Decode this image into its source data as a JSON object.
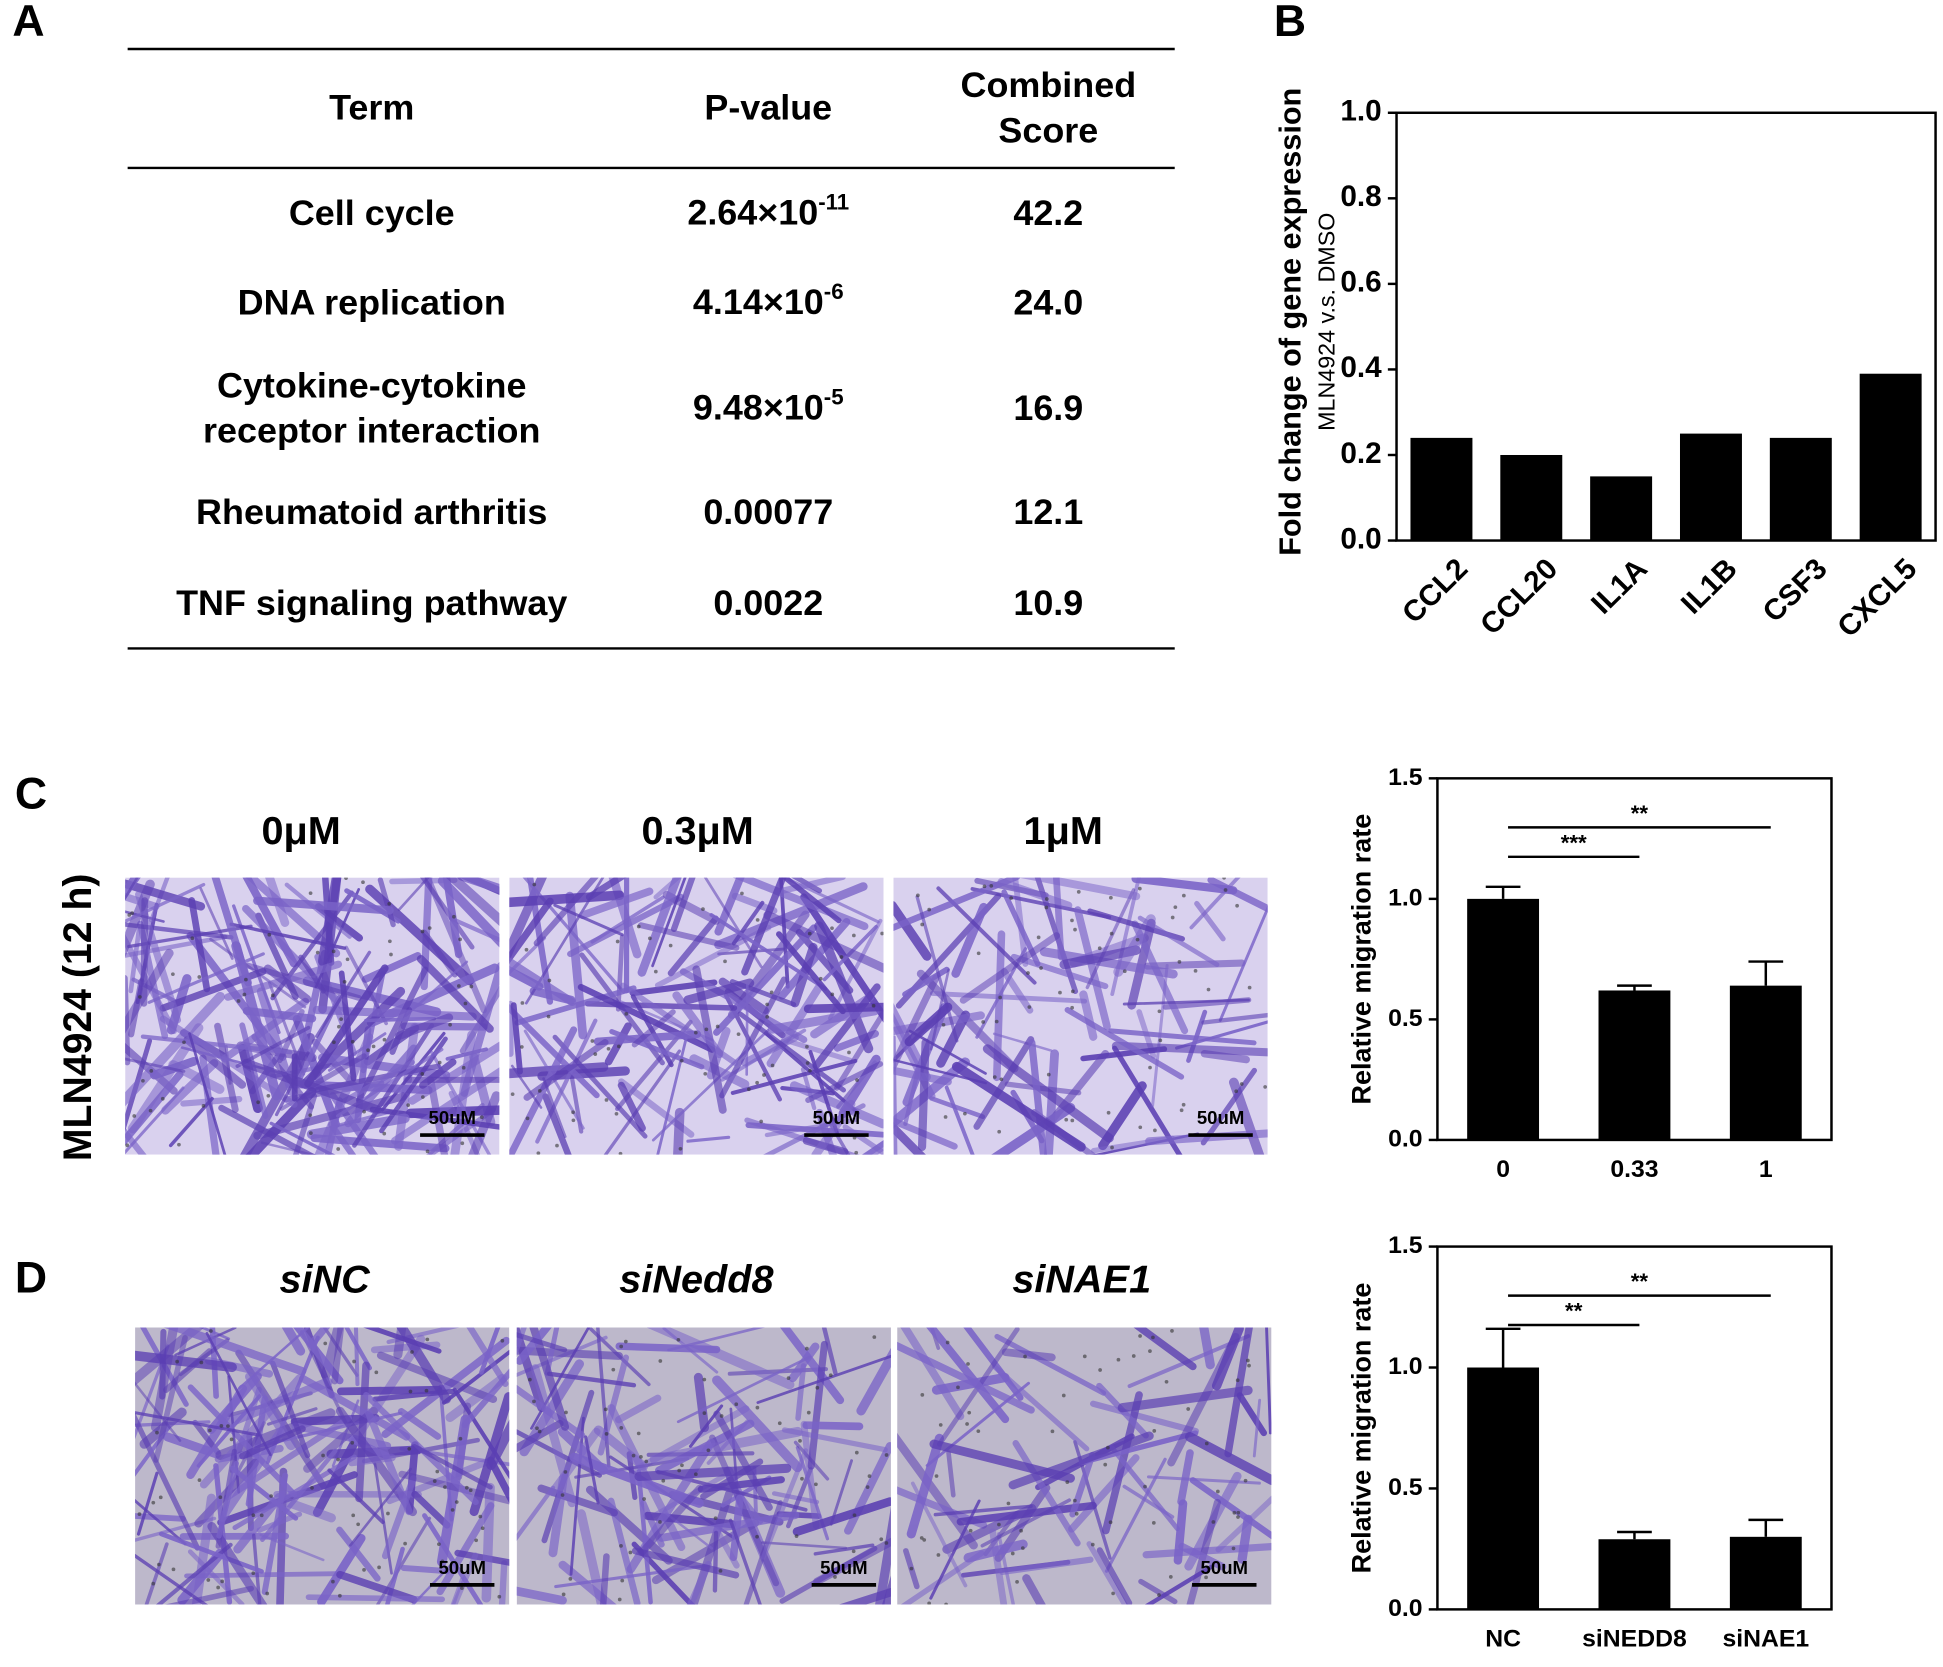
{
  "panel_labels": [
    "A",
    "B",
    "C",
    "D"
  ],
  "table": {
    "header": {
      "term": [
        "Term"
      ],
      "p_value": "P-value",
      "score": [
        "Combined",
        "Score"
      ]
    },
    "rows": [
      {
        "term": [
          "Cell cycle"
        ],
        "p_value": {
          "base": "2.64×10",
          "exp": "-11"
        },
        "score": "42.2"
      },
      {
        "term": [
          "DNA replication"
        ],
        "p_value": {
          "base": "4.14×10",
          "exp": "-6"
        },
        "score": "24.0"
      },
      {
        "term": [
          "Cytokine-cytokine",
          "receptor interaction"
        ],
        "p_value": {
          "base": "9.48×10",
          "exp": "-5"
        },
        "score": "16.9"
      },
      {
        "term": [
          "Rheumatoid arthritis"
        ],
        "p_value": "0.00077",
        "score": "12.1"
      },
      {
        "term": [
          "TNF signaling pathway"
        ],
        "p_value": "0.0022",
        "score": "10.9"
      }
    ]
  },
  "micrographs_c": {
    "row_label": "MLN4924  (12 h)",
    "labels": [
      "0μM",
      "0.3μM",
      "1μM"
    ]
  },
  "micrographs_d": {
    "labels": [
      "siNC",
      "siNedd8",
      "siNAE1"
    ]
  },
  "scale_bar": "50uM",
  "chart_data": [
    {
      "type": "bar",
      "y_label": "Fold change of gene expression",
      "y_sublabel": "MLN4924 v.s. DMSO",
      "categories": [
        "CCL2",
        "CCL20",
        "IL1A",
        "IL1B",
        "CSF3",
        "CXCL5"
      ],
      "values": [
        0.24,
        0.2,
        0.15,
        0.25,
        0.24,
        0.39
      ],
      "color": "#000000",
      "ylim": [
        0,
        1
      ],
      "yticks": [
        {
          "value": 0,
          "label": "0.0"
        },
        {
          "value": 0.2,
          "label": "0.2"
        },
        {
          "value": 0.4,
          "label": "0.4"
        },
        {
          "value": 0.6,
          "label": "0.6"
        },
        {
          "value": 0.8,
          "label": "0.8"
        },
        {
          "value": 1,
          "label": "1.0"
        }
      ]
    },
    {
      "type": "bar",
      "y_label": "Relative migration rate",
      "categories": [
        "0",
        "0.33",
        "1"
      ],
      "values": [
        1.0,
        0.62,
        0.64
      ],
      "errors": [
        0.05,
        0.02,
        0.1
      ],
      "color": "#000000",
      "ylim": [
        0,
        1.5
      ],
      "yticks": [
        {
          "value": 0,
          "label": "0.0"
        },
        0.5,
        {
          "value": 1,
          "label": "1.0"
        },
        1.5
      ],
      "annotations": [
        {
          "label": "**",
          "between": [
            "0",
            "1"
          ]
        },
        {
          "label": "***",
          "between": [
            "0",
            "0.33"
          ]
        }
      ]
    },
    {
      "type": "bar",
      "y_label": "Relative migration rate",
      "categories": [
        "NC",
        "siNEDD8",
        "siNAE1"
      ],
      "values": [
        1.0,
        0.29,
        0.3
      ],
      "errors": [
        0.16,
        0.03,
        0.07
      ],
      "color": "#000000",
      "ylim": [
        0,
        1.5
      ],
      "yticks": [
        {
          "value": 0,
          "label": "0.0"
        },
        0.5,
        {
          "value": 1,
          "label": "1.0"
        },
        1.5
      ],
      "annotations": [
        {
          "label": "**",
          "between": [
            "NC",
            "siNAE1"
          ]
        },
        {
          "label": "**",
          "between": [
            "NC",
            "siNEDD8"
          ]
        }
      ]
    }
  ]
}
